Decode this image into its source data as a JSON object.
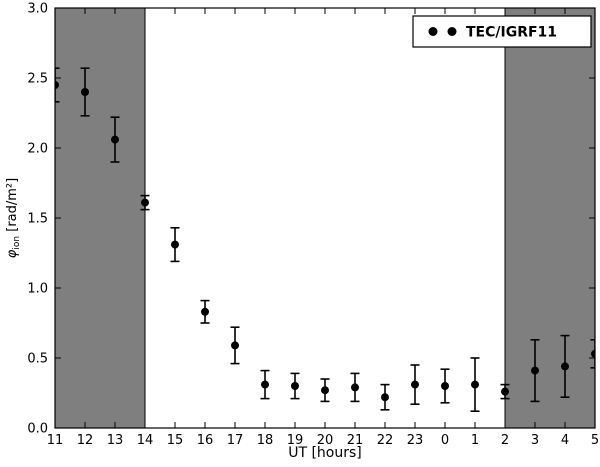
{
  "figure": {
    "background": "#ffffff",
    "frame_color": "#000000",
    "shade_color": "#7f7f7f"
  },
  "chart_data": {
    "type": "scatter",
    "title": "",
    "xlabel": "UT [hours]",
    "ylabel": {
      "symbol": "φ",
      "subscript": "ion",
      "units": " [rad/m²]"
    },
    "x_categories": [
      "11",
      "12",
      "13",
      "14",
      "15",
      "16",
      "17",
      "18",
      "19",
      "20",
      "21",
      "22",
      "23",
      "0",
      "1",
      "2",
      "3",
      "4",
      "5"
    ],
    "ylim": [
      0,
      3
    ],
    "ytick_labels": [
      "0.0",
      "0.5",
      "1.0",
      "1.5",
      "2.0",
      "2.5",
      "3.0"
    ],
    "ytick_values": [
      0.0,
      0.5,
      1.0,
      1.5,
      2.0,
      2.5,
      3.0
    ],
    "grid": false,
    "legend": {
      "position": "upper right",
      "entries": [
        {
          "label": "TEC/IGRF11",
          "marker": "circle",
          "color": "#000000",
          "numpoints": 2
        }
      ]
    },
    "shaded_regions": [
      {
        "from_category": "11",
        "to_category": "14",
        "color": "#7f7f7f"
      },
      {
        "from_category": "2",
        "to_category": "5",
        "color": "#7f7f7f"
      }
    ],
    "series": [
      {
        "name": "TEC/IGRF11",
        "marker": "circle",
        "color": "#000000",
        "x": [
          "11",
          "12",
          "13",
          "14",
          "15",
          "16",
          "17",
          "18",
          "19",
          "20",
          "21",
          "22",
          "23",
          "0",
          "1",
          "2",
          "3",
          "4",
          "5"
        ],
        "y": [
          2.45,
          2.4,
          2.06,
          1.61,
          1.31,
          0.83,
          0.59,
          0.31,
          0.3,
          0.27,
          0.29,
          0.22,
          0.31,
          0.3,
          0.31,
          0.26,
          0.41,
          0.44,
          0.53
        ],
        "yerr": [
          0.12,
          0.17,
          0.16,
          0.05,
          0.12,
          0.08,
          0.13,
          0.1,
          0.09,
          0.08,
          0.1,
          0.09,
          0.14,
          0.12,
          0.19,
          0.05,
          0.22,
          0.22,
          0.1
        ]
      }
    ]
  }
}
